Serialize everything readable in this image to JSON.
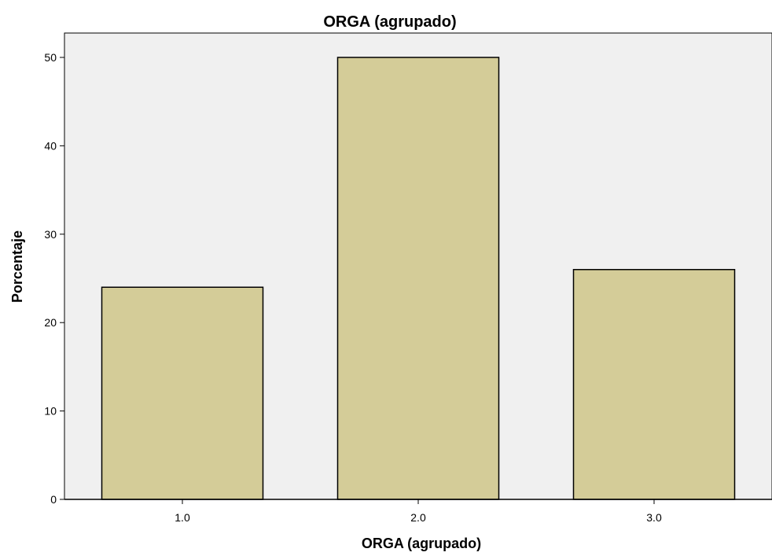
{
  "chart_data": {
    "type": "bar",
    "title": "ORGA (agrupado)",
    "xlabel": "ORGA (agrupado)",
    "ylabel": "Porcentaje",
    "categories": [
      "1.0",
      "2.0",
      "3.0"
    ],
    "values": [
      24,
      50,
      26
    ],
    "ylim": [
      0,
      50
    ],
    "yticks": [
      "0",
      "10",
      "20",
      "30",
      "40",
      "50"
    ],
    "grid": false,
    "colors": {
      "plot_background": "#f0f0f0",
      "bar_fill": "#d4cc98",
      "bar_stroke": "#000000"
    }
  }
}
